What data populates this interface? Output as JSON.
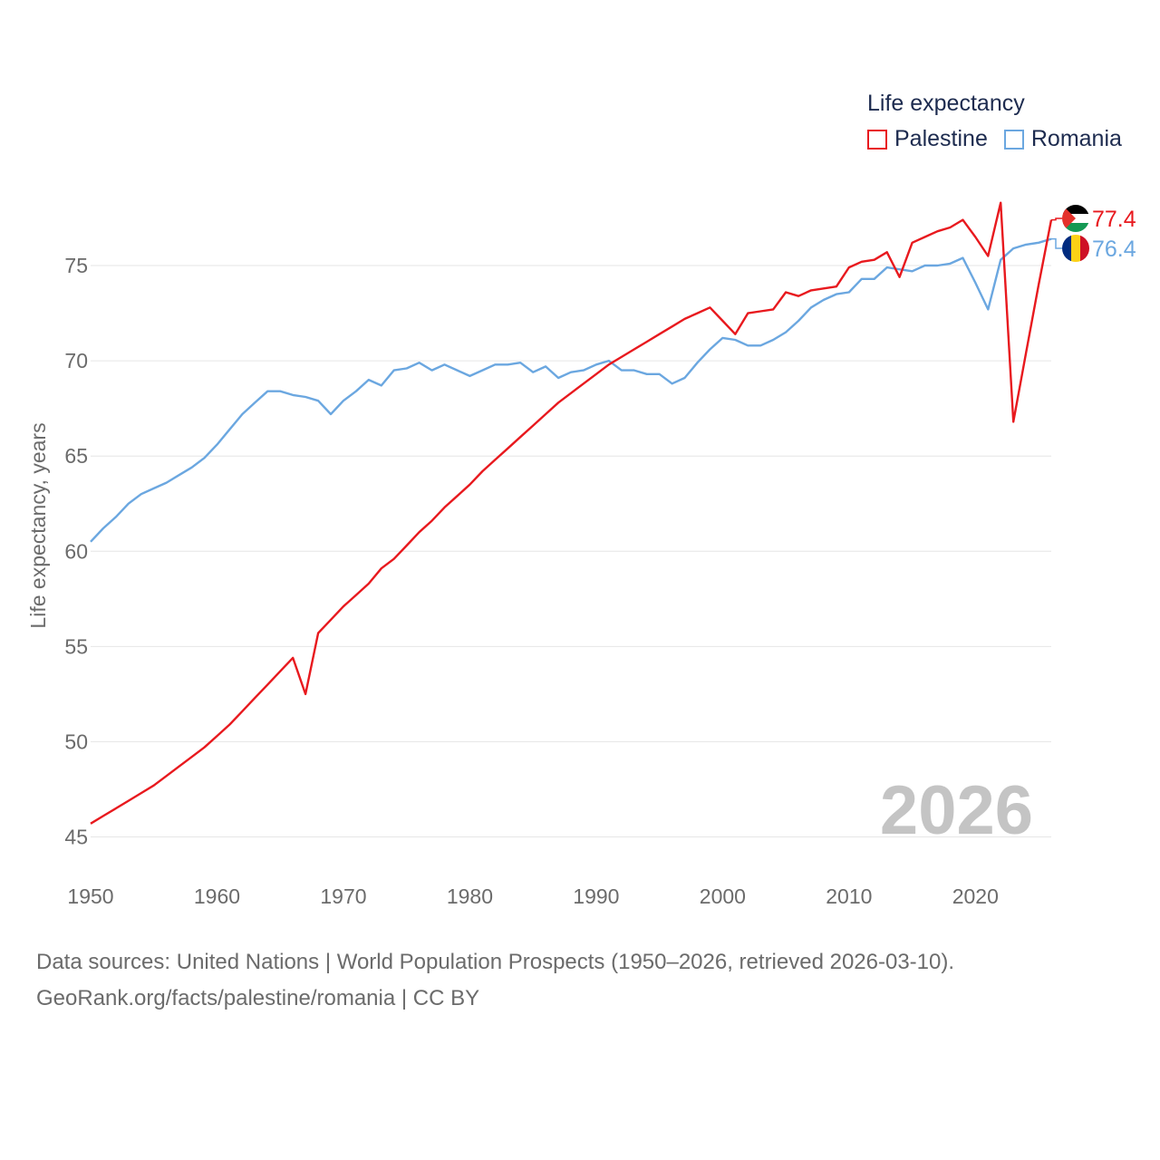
{
  "chart_data": {
    "type": "line",
    "title": "",
    "xlabel": "",
    "ylabel": "Life expectancy, years",
    "xlim": [
      1950,
      2026
    ],
    "ylim": [
      43.5,
      78
    ],
    "xticks": [
      1950,
      1960,
      1970,
      1980,
      1990,
      2000,
      2010,
      2020
    ],
    "yticks": [
      45,
      50,
      55,
      60,
      65,
      70,
      75
    ],
    "year_label": "2026",
    "legend": {
      "title": "Life expectancy",
      "position": "top-right"
    },
    "x": [
      1950,
      1951,
      1952,
      1953,
      1954,
      1955,
      1956,
      1957,
      1958,
      1959,
      1960,
      1961,
      1962,
      1963,
      1964,
      1965,
      1966,
      1967,
      1968,
      1969,
      1970,
      1971,
      1972,
      1973,
      1974,
      1975,
      1976,
      1977,
      1978,
      1979,
      1980,
      1981,
      1982,
      1983,
      1984,
      1985,
      1986,
      1987,
      1988,
      1989,
      1990,
      1991,
      1992,
      1993,
      1994,
      1995,
      1996,
      1997,
      1998,
      1999,
      2000,
      2001,
      2002,
      2003,
      2004,
      2005,
      2006,
      2007,
      2008,
      2009,
      2010,
      2011,
      2012,
      2013,
      2014,
      2015,
      2016,
      2017,
      2018,
      2019,
      2020,
      2021,
      2022,
      2023,
      2024,
      2025,
      2026
    ],
    "series": [
      {
        "name": "Palestine",
        "color": "#e8191e",
        "end_label": "77.4",
        "values": [
          45.7,
          46.1,
          46.5,
          46.9,
          47.3,
          47.7,
          48.2,
          48.7,
          49.2,
          49.7,
          50.3,
          50.9,
          51.6,
          52.3,
          53.0,
          53.7,
          54.4,
          52.5,
          55.7,
          56.4,
          57.1,
          57.7,
          58.3,
          59.1,
          59.6,
          60.3,
          61.0,
          61.6,
          62.3,
          62.9,
          63.5,
          64.2,
          64.8,
          65.4,
          66.0,
          66.6,
          67.2,
          67.8,
          68.3,
          68.8,
          69.3,
          69.8,
          70.2,
          70.6,
          71.0,
          71.4,
          71.8,
          72.2,
          72.5,
          72.8,
          72.1,
          71.4,
          72.5,
          72.6,
          72.7,
          73.6,
          73.4,
          73.7,
          73.8,
          73.9,
          74.9,
          75.2,
          75.3,
          75.7,
          74.4,
          76.2,
          76.5,
          76.8,
          77.0,
          77.4,
          76.5,
          75.5,
          78.3,
          66.8,
          70.4,
          74.0,
          77.4
        ]
      },
      {
        "name": "Romania",
        "color": "#6ba7e0",
        "end_label": "76.4",
        "values": [
          60.5,
          61.2,
          61.8,
          62.5,
          63.0,
          63.3,
          63.6,
          64.0,
          64.4,
          64.9,
          65.6,
          66.4,
          67.2,
          67.8,
          68.4,
          68.4,
          68.2,
          68.1,
          67.9,
          67.2,
          67.9,
          68.4,
          69.0,
          68.7,
          69.5,
          69.6,
          69.9,
          69.5,
          69.8,
          69.5,
          69.2,
          69.5,
          69.8,
          69.8,
          69.9,
          69.4,
          69.7,
          69.1,
          69.4,
          69.5,
          69.8,
          70.0,
          69.5,
          69.5,
          69.3,
          69.3,
          68.8,
          69.1,
          69.9,
          70.6,
          71.2,
          71.1,
          70.8,
          70.8,
          71.1,
          71.5,
          72.1,
          72.8,
          73.2,
          73.5,
          73.6,
          74.3,
          74.3,
          74.9,
          74.8,
          74.7,
          75.0,
          75.0,
          75.1,
          75.4,
          74.1,
          72.7,
          75.3,
          75.9,
          76.1,
          76.2,
          76.4
        ]
      }
    ]
  },
  "footer": {
    "line1": "Data sources: United Nations | World Population Prospects (1950–2026, retrieved 2026-03-10).",
    "line2": "GeoRank.org/facts/palestine/romania | CC BY"
  },
  "colors": {
    "palestine": "#e8191e",
    "romania": "#6ba7e0",
    "grid": "#e6e6e6",
    "axis_text": "#6b6b6b",
    "year_watermark": "#c4c4c4"
  }
}
